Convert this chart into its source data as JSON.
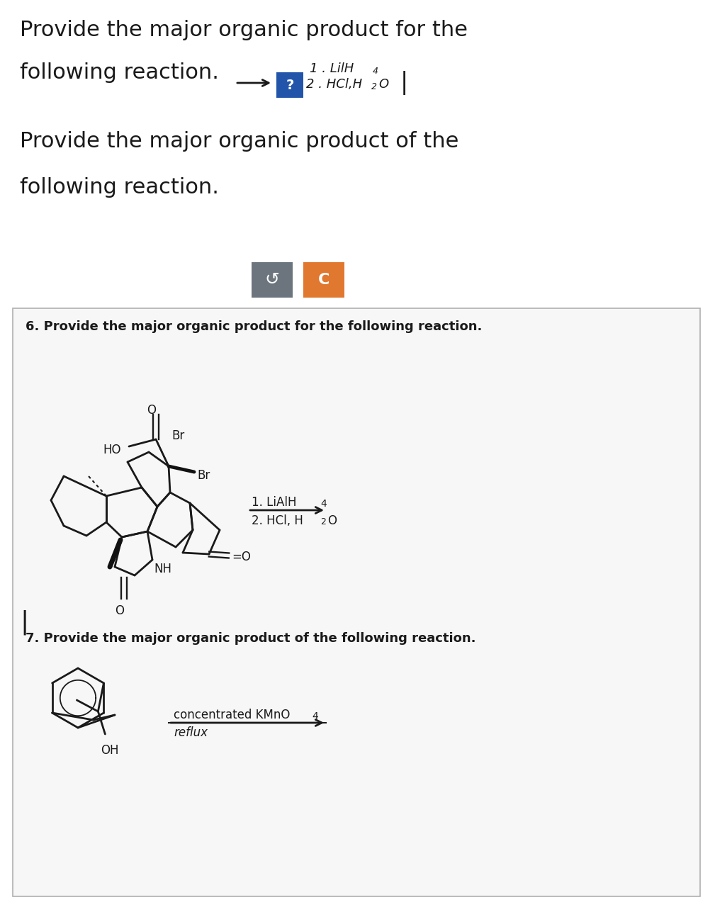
{
  "bg_color": "#ffffff",
  "text_color": "#1a1a1a",
  "button1_color": "#6c757d",
  "button2_color": "#e07830",
  "box_face": "#f5f5f5",
  "box_edge": "#b0b0b0",
  "line1": "Provide the major organic product for the",
  "line2": "following reaction.",
  "line3": "Provide the major organic product of the",
  "line4": "following reaction.",
  "prob6_text": "6. Provide the major organic product for the following reaction.",
  "prob7_text": "7. Provide the major organic product of the following reaction.",
  "rxn6_1": "1. LiAlH",
  "rxn6_1s": "4",
  "rxn6_2": "2. HCl, H",
  "rxn6_2s": "2",
  "rxn6_2e": "O",
  "rxn7_1": "concentrated KMnO",
  "rxn7_1s": "4",
  "rxn7_2": "reflux",
  "top_rxn_1": "1 . LilH",
  "top_rxn_1s": "4",
  "top_rxn_2": "2 . HCl,H",
  "top_rxn_2s": "2",
  "top_rxn_2e": "O"
}
